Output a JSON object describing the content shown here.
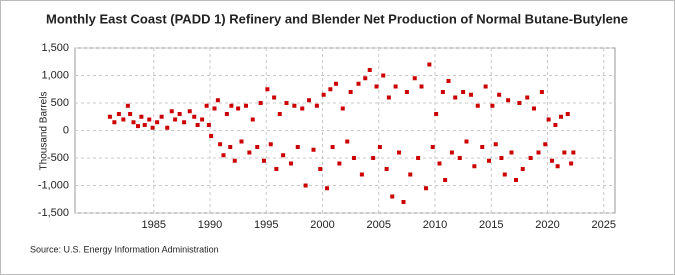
{
  "chart_data": {
    "type": "scatter",
    "title": "Monthly East Coast (PADD 1) Refinery and Blender Net Production of Normal Butane-Butylene",
    "y_label": "Thousand Barrels",
    "source": "Source: U.S. Energy Information Administration",
    "color": "#cc0000",
    "grid": true,
    "xlim": [
      1978,
      2026
    ],
    "xticks": [
      1985,
      1990,
      1995,
      2000,
      2005,
      2010,
      2015,
      2020,
      2025
    ],
    "ylim": [
      -1500,
      1500
    ],
    "yticks": [
      {
        "value": -1500,
        "label": "-1,500"
      },
      {
        "value": -1000,
        "label": "-1,000"
      },
      -500,
      0,
      500,
      {
        "value": 1000,
        "label": "1,000"
      },
      {
        "value": 1500,
        "label": "1,500"
      }
    ],
    "x": [
      1981.1,
      1981.5,
      1981.9,
      1982.3,
      1982.7,
      1982.9,
      1983.2,
      1983.6,
      1983.9,
      1984.2,
      1984.6,
      1984.9,
      1985.3,
      1985.7,
      1986.2,
      1986.6,
      1986.9,
      1987.3,
      1987.7,
      1988.2,
      1988.6,
      1988.9,
      1989.3,
      1989.7,
      1989.9,
      1990.1,
      1990.4,
      1990.7,
      1990.9,
      1991.2,
      1991.5,
      1991.8,
      1991.9,
      1992.2,
      1992.5,
      1992.8,
      1993.2,
      1993.5,
      1993.8,
      1994.2,
      1994.5,
      1994.8,
      1995.1,
      1995.4,
      1995.7,
      1995.9,
      1996.2,
      1996.5,
      1996.8,
      1997.2,
      1997.5,
      1997.8,
      1998.2,
      1998.5,
      1998.8,
      1999.2,
      1999.5,
      1999.8,
      2000.1,
      2000.4,
      2000.7,
      2000.9,
      2001.2,
      2001.5,
      2001.8,
      2002.2,
      2002.5,
      2002.8,
      2003.2,
      2003.5,
      2003.8,
      2004.2,
      2004.5,
      2004.8,
      2005.1,
      2005.4,
      2005.7,
      2005.9,
      2006.2,
      2006.5,
      2006.8,
      2007.2,
      2007.5,
      2007.8,
      2008.2,
      2008.5,
      2008.8,
      2009.2,
      2009.5,
      2009.8,
      2010.1,
      2010.4,
      2010.7,
      2010.9,
      2011.2,
      2011.5,
      2011.8,
      2012.2,
      2012.5,
      2012.8,
      2013.2,
      2013.5,
      2013.8,
      2014.2,
      2014.5,
      2014.8,
      2015.1,
      2015.4,
      2015.7,
      2015.9,
      2016.2,
      2016.5,
      2016.8,
      2017.2,
      2017.5,
      2017.8,
      2018.2,
      2018.5,
      2018.8,
      2019.2,
      2019.5,
      2019.8,
      2020.1,
      2020.4,
      2020.7,
      2020.9,
      2021.2,
      2021.5,
      2021.8,
      2022.1,
      2022.3
    ],
    "values": [
      250,
      150,
      300,
      200,
      450,
      300,
      150,
      80,
      250,
      100,
      200,
      50,
      150,
      250,
      50,
      350,
      200,
      300,
      150,
      350,
      250,
      100,
      200,
      450,
      100,
      -100,
      400,
      550,
      -250,
      -450,
      300,
      -300,
      450,
      -550,
      400,
      -200,
      450,
      -400,
      200,
      -300,
      500,
      -550,
      750,
      -250,
      600,
      -700,
      300,
      -450,
      500,
      -600,
      450,
      -300,
      400,
      -1000,
      550,
      -350,
      450,
      -700,
      650,
      -1050,
      750,
      -300,
      850,
      -600,
      400,
      -200,
      700,
      -500,
      850,
      -800,
      950,
      1100,
      -500,
      800,
      -300,
      1000,
      -700,
      600,
      -1200,
      800,
      -400,
      -1300,
      700,
      -800,
      950,
      -500,
      800,
      -1050,
      1200,
      -300,
      300,
      -600,
      700,
      -900,
      900,
      -400,
      600,
      -500,
      700,
      -200,
      650,
      -650,
      450,
      -300,
      800,
      -550,
      450,
      -250,
      650,
      -500,
      -800,
      550,
      -400,
      -900,
      500,
      -700,
      600,
      -500,
      400,
      -400,
      700,
      -250,
      200,
      -550,
      100,
      -650,
      250,
      -400,
      300,
      -600,
      -400
    ]
  }
}
